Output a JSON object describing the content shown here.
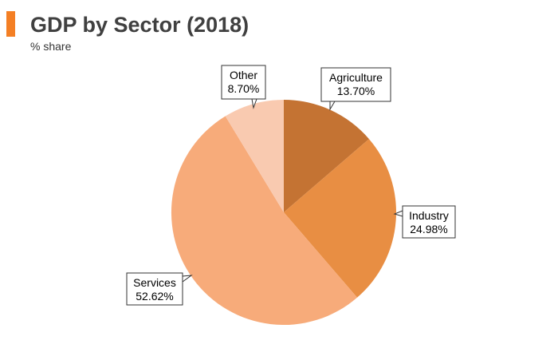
{
  "colors": {
    "accent": "#F47F24"
  },
  "header": {
    "title": "GDP by Sector (2018)",
    "subtitle": "% share"
  },
  "chart_data": {
    "type": "pie",
    "title": "GDP by Sector (2018)",
    "subtitle": "% share",
    "unit": "%",
    "slices": [
      {
        "name": "Agriculture",
        "value": 13.7,
        "label": "13.70%",
        "color": "#C47333"
      },
      {
        "name": "Industry",
        "value": 24.98,
        "label": "24.98%",
        "color": "#E88E43"
      },
      {
        "name": "Services",
        "value": 52.62,
        "label": "52.62%",
        "color": "#F7AB7A"
      },
      {
        "name": "Other",
        "value": 8.7,
        "label": "8.70%",
        "color": "#F9CAB0"
      }
    ]
  }
}
